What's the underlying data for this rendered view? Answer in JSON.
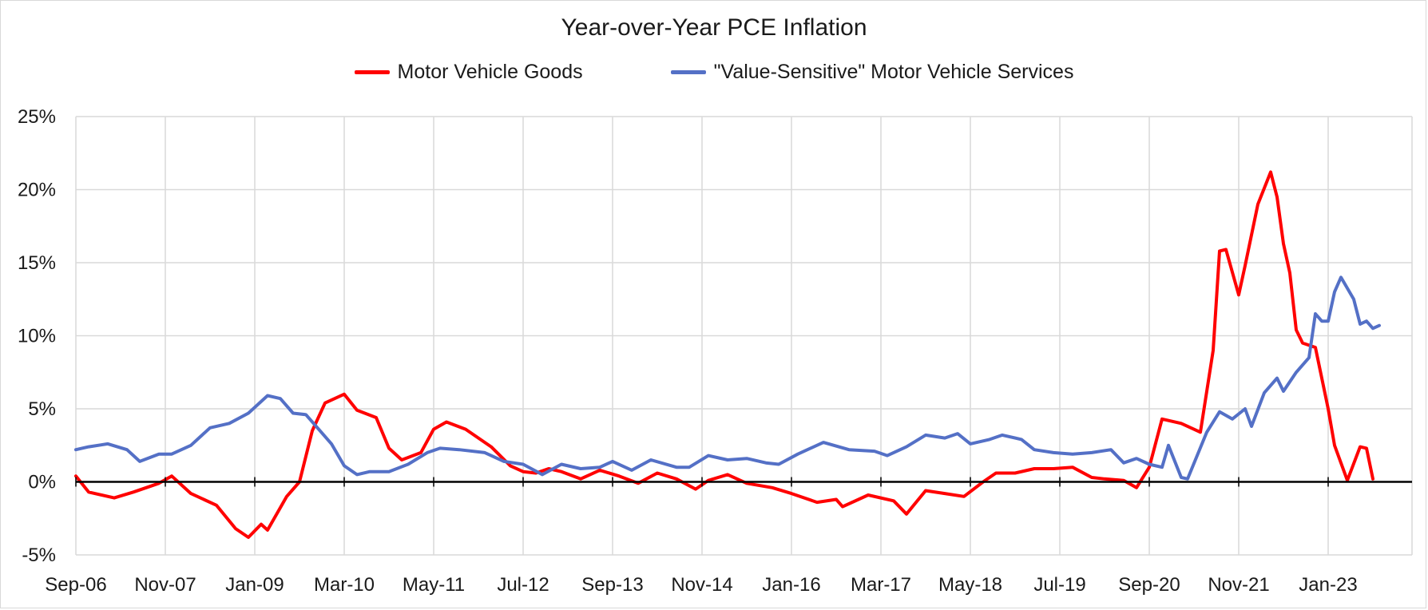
{
  "chart_data": {
    "type": "line",
    "title": "Year-over-Year PCE Inflation",
    "xlabel": "",
    "ylabel": "",
    "ylim": [
      -5,
      25
    ],
    "yticks": [
      -5,
      0,
      5,
      10,
      15,
      20,
      25
    ],
    "ytick_labels": [
      "-5%",
      "0%",
      "5%",
      "10%",
      "15%",
      "20%",
      "25%"
    ],
    "xtick_labels": [
      "Sep-06",
      "Nov-07",
      "Jan-09",
      "Mar-10",
      "May-11",
      "Jul-12",
      "Sep-13",
      "Nov-14",
      "Jan-16",
      "Mar-17",
      "May-18",
      "Jul-19",
      "Sep-20",
      "Nov-21",
      "Jan-23"
    ],
    "x_start": "2006-09",
    "x_end": "2023-08",
    "grid": true,
    "legend_position": "top-center",
    "series": [
      {
        "name": "Motor Vehicle Goods",
        "color": "#ff0000",
        "points": [
          [
            "2006-09",
            0.4
          ],
          [
            "2006-11",
            -0.7
          ],
          [
            "2007-03",
            -1.1
          ],
          [
            "2007-06",
            -0.7
          ],
          [
            "2007-10",
            -0.1
          ],
          [
            "2007-12",
            0.4
          ],
          [
            "2008-03",
            -0.8
          ],
          [
            "2008-07",
            -1.6
          ],
          [
            "2008-10",
            -3.2
          ],
          [
            "2008-12",
            -3.8
          ],
          [
            "2009-02",
            -2.9
          ],
          [
            "2009-03",
            -3.3
          ],
          [
            "2009-06",
            -1.0
          ],
          [
            "2009-08",
            0.0
          ],
          [
            "2009-10",
            3.5
          ],
          [
            "2009-12",
            5.4
          ],
          [
            "2010-03",
            6.0
          ],
          [
            "2010-05",
            4.9
          ],
          [
            "2010-08",
            4.4
          ],
          [
            "2010-10",
            2.3
          ],
          [
            "2010-12",
            1.5
          ],
          [
            "2011-03",
            2.0
          ],
          [
            "2011-05",
            3.6
          ],
          [
            "2011-07",
            4.1
          ],
          [
            "2011-10",
            3.6
          ],
          [
            "2012-02",
            2.4
          ],
          [
            "2012-05",
            1.1
          ],
          [
            "2012-07",
            0.7
          ],
          [
            "2012-09",
            0.6
          ],
          [
            "2012-11",
            0.9
          ],
          [
            "2013-01",
            0.7
          ],
          [
            "2013-04",
            0.2
          ],
          [
            "2013-07",
            0.8
          ],
          [
            "2013-10",
            0.4
          ],
          [
            "2014-01",
            -0.1
          ],
          [
            "2014-04",
            0.6
          ],
          [
            "2014-07",
            0.2
          ],
          [
            "2014-10",
            -0.5
          ],
          [
            "2014-12",
            0.1
          ],
          [
            "2015-03",
            0.5
          ],
          [
            "2015-06",
            -0.1
          ],
          [
            "2015-10",
            -0.4
          ],
          [
            "2016-01",
            -0.8
          ],
          [
            "2016-05",
            -1.4
          ],
          [
            "2016-08",
            -1.2
          ],
          [
            "2016-09",
            -1.7
          ],
          [
            "2017-01",
            -0.9
          ],
          [
            "2017-05",
            -1.3
          ],
          [
            "2017-07",
            -2.2
          ],
          [
            "2017-10",
            -0.6
          ],
          [
            "2018-01",
            -0.8
          ],
          [
            "2018-04",
            -1.0
          ],
          [
            "2018-07",
            0.0
          ],
          [
            "2018-09",
            0.6
          ],
          [
            "2018-12",
            0.6
          ],
          [
            "2019-03",
            0.9
          ],
          [
            "2019-06",
            0.9
          ],
          [
            "2019-09",
            1.0
          ],
          [
            "2019-12",
            0.3
          ],
          [
            "2020-02",
            0.2
          ],
          [
            "2020-05",
            0.1
          ],
          [
            "2020-07",
            -0.4
          ],
          [
            "2020-09",
            1.0
          ],
          [
            "2020-11",
            4.3
          ],
          [
            "2021-02",
            4.0
          ],
          [
            "2021-05",
            3.4
          ],
          [
            "2021-07",
            9.0
          ],
          [
            "2021-08",
            15.8
          ],
          [
            "2021-09",
            15.9
          ],
          [
            "2021-11",
            12.8
          ],
          [
            "2021-12",
            14.8
          ],
          [
            "2022-02",
            19.0
          ],
          [
            "2022-04",
            21.2
          ],
          [
            "2022-05",
            19.5
          ],
          [
            "2022-06",
            16.3
          ],
          [
            "2022-07",
            14.3
          ],
          [
            "2022-08",
            10.4
          ],
          [
            "2022-09",
            9.5
          ],
          [
            "2022-11",
            9.2
          ],
          [
            "2023-01",
            5.0
          ],
          [
            "2023-02",
            2.5
          ],
          [
            "2023-04",
            0.1
          ],
          [
            "2023-06",
            2.4
          ],
          [
            "2023-07",
            2.3
          ],
          [
            "2023-08",
            0.2
          ]
        ]
      },
      {
        "name": "\"Value-Sensitive\" Motor Vehicle Services",
        "color": "#5470c6",
        "points": [
          [
            "2006-09",
            2.2
          ],
          [
            "2006-11",
            2.4
          ],
          [
            "2007-02",
            2.6
          ],
          [
            "2007-05",
            2.2
          ],
          [
            "2007-07",
            1.4
          ],
          [
            "2007-10",
            1.9
          ],
          [
            "2007-12",
            1.9
          ],
          [
            "2008-03",
            2.5
          ],
          [
            "2008-06",
            3.7
          ],
          [
            "2008-09",
            4.0
          ],
          [
            "2008-12",
            4.7
          ],
          [
            "2009-03",
            5.9
          ],
          [
            "2009-05",
            5.7
          ],
          [
            "2009-07",
            4.7
          ],
          [
            "2009-09",
            4.6
          ],
          [
            "2009-11",
            3.6
          ],
          [
            "2010-01",
            2.6
          ],
          [
            "2010-03",
            1.1
          ],
          [
            "2010-05",
            0.5
          ],
          [
            "2010-07",
            0.7
          ],
          [
            "2010-10",
            0.7
          ],
          [
            "2011-01",
            1.2
          ],
          [
            "2011-04",
            2.0
          ],
          [
            "2011-06",
            2.3
          ],
          [
            "2011-09",
            2.2
          ],
          [
            "2012-01",
            2.0
          ],
          [
            "2012-04",
            1.4
          ],
          [
            "2012-07",
            1.2
          ],
          [
            "2012-10",
            0.5
          ],
          [
            "2013-01",
            1.2
          ],
          [
            "2013-04",
            0.9
          ],
          [
            "2013-07",
            1.0
          ],
          [
            "2013-09",
            1.4
          ],
          [
            "2013-12",
            0.8
          ],
          [
            "2014-03",
            1.5
          ],
          [
            "2014-07",
            1.0
          ],
          [
            "2014-09",
            1.0
          ],
          [
            "2014-12",
            1.8
          ],
          [
            "2015-03",
            1.5
          ],
          [
            "2015-06",
            1.6
          ],
          [
            "2015-09",
            1.3
          ],
          [
            "2015-11",
            1.2
          ],
          [
            "2016-02",
            1.9
          ],
          [
            "2016-06",
            2.7
          ],
          [
            "2016-10",
            2.2
          ],
          [
            "2017-02",
            2.1
          ],
          [
            "2017-04",
            1.8
          ],
          [
            "2017-07",
            2.4
          ],
          [
            "2017-10",
            3.2
          ],
          [
            "2018-01",
            3.0
          ],
          [
            "2018-03",
            3.3
          ],
          [
            "2018-05",
            2.6
          ],
          [
            "2018-08",
            2.9
          ],
          [
            "2018-10",
            3.2
          ],
          [
            "2019-01",
            2.9
          ],
          [
            "2019-03",
            2.2
          ],
          [
            "2019-06",
            2.0
          ],
          [
            "2019-09",
            1.9
          ],
          [
            "2019-12",
            2.0
          ],
          [
            "2020-03",
            2.2
          ],
          [
            "2020-05",
            1.3
          ],
          [
            "2020-07",
            1.6
          ],
          [
            "2020-09",
            1.2
          ],
          [
            "2020-11",
            1.0
          ],
          [
            "2020-12",
            2.5
          ],
          [
            "2021-02",
            0.3
          ],
          [
            "2021-03",
            0.2
          ],
          [
            "2021-06",
            3.4
          ],
          [
            "2021-08",
            4.8
          ],
          [
            "2021-10",
            4.3
          ],
          [
            "2021-12",
            5.0
          ],
          [
            "2022-01",
            3.8
          ],
          [
            "2022-03",
            6.1
          ],
          [
            "2022-05",
            7.1
          ],
          [
            "2022-06",
            6.2
          ],
          [
            "2022-08",
            7.5
          ],
          [
            "2022-10",
            8.5
          ],
          [
            "2022-11",
            11.5
          ],
          [
            "2022-12",
            11.0
          ],
          [
            "2023-01",
            11.0
          ],
          [
            "2023-02",
            13.0
          ],
          [
            "2023-03",
            14.0
          ],
          [
            "2023-05",
            12.5
          ],
          [
            "2023-06",
            10.8
          ],
          [
            "2023-07",
            11.0
          ],
          [
            "2023-08",
            10.5
          ],
          [
            "2023-09",
            10.7
          ]
        ]
      }
    ]
  }
}
